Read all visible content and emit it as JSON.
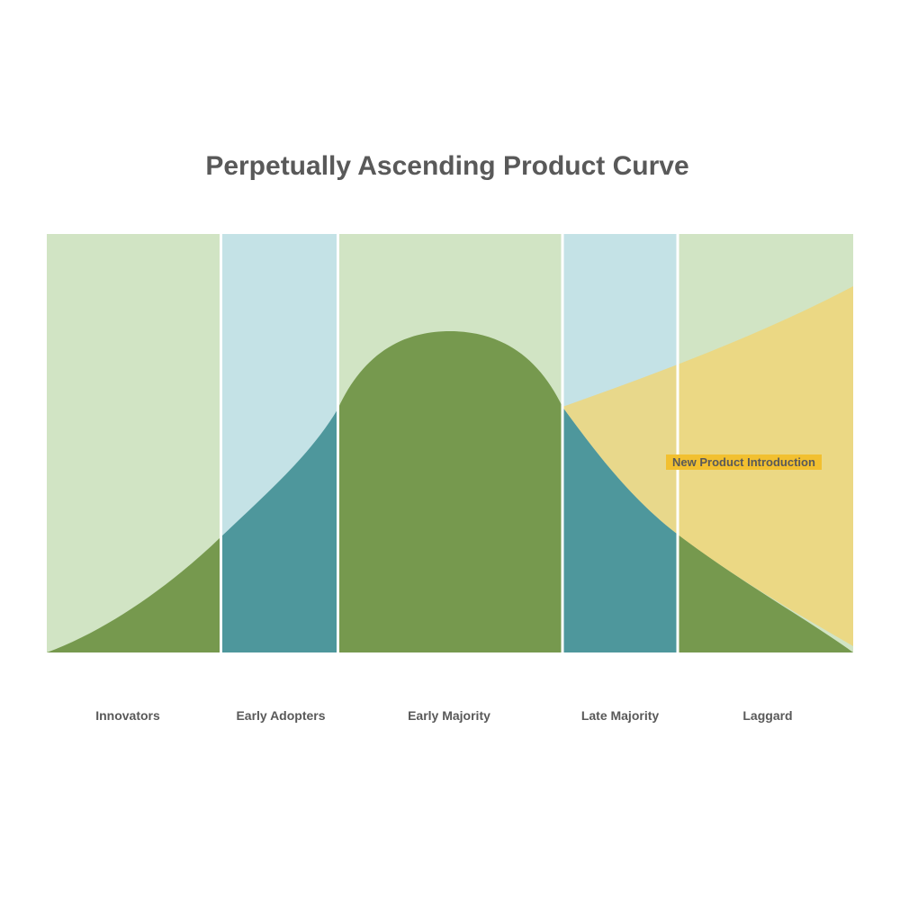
{
  "title": "Perpetually Ascending Product Curve",
  "segments": [
    {
      "label": "Innovators",
      "background": "#d1e4c4",
      "fill": "#76994e"
    },
    {
      "label": "Early Adopters",
      "background": "#c4e2e6",
      "fill": "#4e979c"
    },
    {
      "label": "Early Majority",
      "background": "#d1e4c4",
      "fill": "#76994e"
    },
    {
      "label": "Late Majority",
      "background": "#c4e2e6",
      "fill": "#4e979c"
    },
    {
      "label": "Laggard",
      "background": "#d1e4c4",
      "fill": "#76994e"
    }
  ],
  "new_product": {
    "label": "New Product Introduction",
    "wedge_color": "#f0d676",
    "label_background": "#f2c030"
  },
  "colors": {
    "text": "#595959",
    "divider": "#ffffff"
  }
}
